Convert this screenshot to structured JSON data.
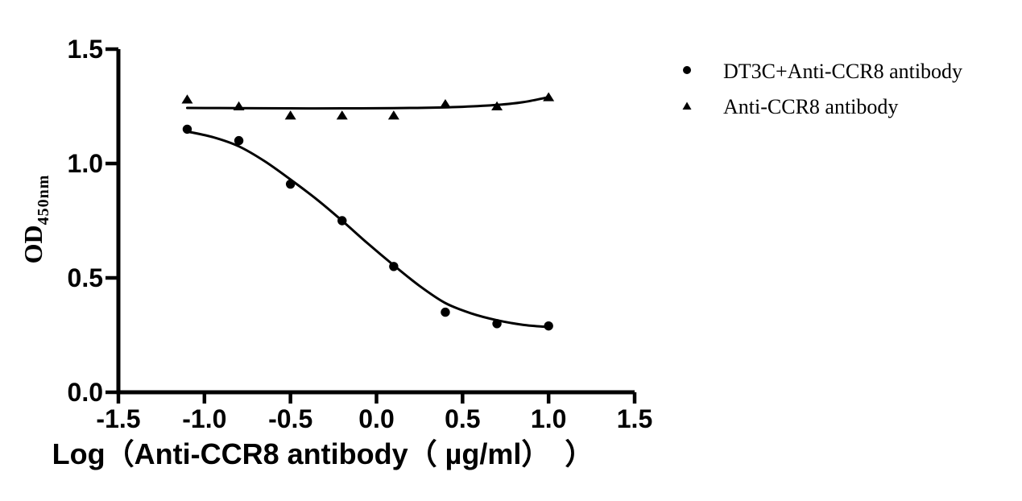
{
  "chart_data": {
    "type": "scatter",
    "title": "",
    "xlabel": "Log（Anti-CCR8 antibody（ µg/ml）　）",
    "ylabel": "OD",
    "ylabel_sub": "450nm",
    "xlim": [
      -1.5,
      1.5
    ],
    "ylim": [
      0.0,
      1.5
    ],
    "x_ticks": [
      -1.5,
      -1.0,
      -0.5,
      0.0,
      0.5,
      1.0,
      1.5
    ],
    "x_tick_labels": [
      "-1.5",
      "-1.0",
      "-0.5",
      "0.0",
      "0.5",
      "1.0",
      "1.5"
    ],
    "y_ticks": [
      0.0,
      0.5,
      1.0,
      1.5
    ],
    "y_tick_labels": [
      "0.0",
      "0.5",
      "1.0",
      "1.5"
    ],
    "grid": false,
    "legend_position": "top-right",
    "axis_color": "#000000",
    "marker_color": "#000000",
    "background": "#ffffff",
    "x": [
      -1.1,
      -0.8,
      -0.5,
      -0.2,
      0.1,
      0.4,
      0.7,
      1.0
    ],
    "series": [
      {
        "name": "DT3C+Anti-CCR8 antibody",
        "marker": "circle",
        "values": [
          1.15,
          1.1,
          0.91,
          0.75,
          0.55,
          0.35,
          0.3,
          0.29
        ],
        "fit_curve": {
          "x": [
            -1.1,
            -0.95,
            -0.8,
            -0.65,
            -0.5,
            -0.35,
            -0.2,
            -0.05,
            0.1,
            0.25,
            0.4,
            0.55,
            0.7,
            0.85,
            1.0
          ],
          "y": [
            1.14,
            1.115,
            1.075,
            1.01,
            0.93,
            0.845,
            0.75,
            0.65,
            0.555,
            0.465,
            0.39,
            0.345,
            0.315,
            0.295,
            0.285
          ]
        }
      },
      {
        "name": "Anti-CCR8 antibody",
        "marker": "triangle",
        "values": [
          1.28,
          1.25,
          1.21,
          1.21,
          1.21,
          1.26,
          1.25,
          1.29
        ],
        "fit_curve": {
          "x": [
            -1.1,
            -0.8,
            -0.5,
            -0.2,
            0.1,
            0.3,
            0.5,
            0.7,
            0.85,
            1.0
          ],
          "y": [
            1.243,
            1.242,
            1.241,
            1.241,
            1.242,
            1.244,
            1.248,
            1.256,
            1.268,
            1.29
          ]
        }
      }
    ]
  }
}
